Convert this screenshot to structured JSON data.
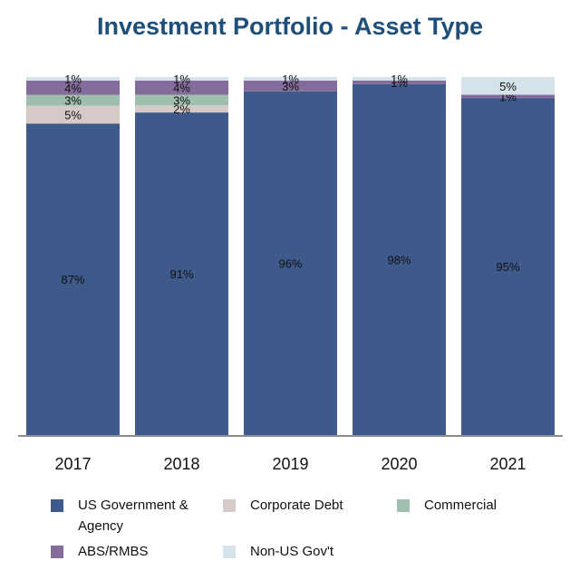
{
  "chart_data": {
    "type": "bar",
    "stacked": true,
    "normalized": true,
    "title": "Investment Portfolio - Asset Type",
    "xlabel": "",
    "ylabel": "",
    "ylim": [
      0,
      100
    ],
    "grid": false,
    "categories": [
      "2017",
      "2018",
      "2019",
      "2020",
      "2021"
    ],
    "series": [
      {
        "name": "US Government & Agency",
        "color": "#3d5a8a",
        "values": [
          87,
          91,
          96,
          98,
          95
        ],
        "labels": [
          "87%",
          "91%",
          "96%",
          "98%",
          "95%"
        ]
      },
      {
        "name": "Corporate Debt",
        "color": "#d6cac9",
        "values": [
          5,
          2,
          0,
          0,
          0
        ],
        "labels": [
          "5%",
          "2%",
          "",
          "",
          ""
        ]
      },
      {
        "name": "Commercial",
        "color": "#9fbfae",
        "values": [
          3,
          3,
          0,
          0,
          0
        ],
        "labels": [
          "3%",
          "3%",
          "",
          "",
          ""
        ]
      },
      {
        "name": "ABS/RMBS",
        "color": "#846d9c",
        "values": [
          4,
          4,
          3,
          1,
          1
        ],
        "labels": [
          "4%",
          "4%",
          "3%",
          "1%",
          "1%"
        ]
      },
      {
        "name": "Non-US Gov't",
        "color": "#d4e2e9",
        "values": [
          1,
          1,
          1,
          1,
          5
        ],
        "labels": [
          "1%",
          "1%",
          "1%",
          "1%",
          "5%"
        ]
      }
    ],
    "legend": {
      "position": "bottom",
      "items": [
        {
          "label_line1": "US Government &",
          "label_line2": "Agency",
          "color": "#3d5a8a"
        },
        {
          "label_line1": "Corporate Debt",
          "label_line2": "",
          "color": "#d6cac9"
        },
        {
          "label_line1": "Commercial",
          "label_line2": "",
          "color": "#9fbfae"
        },
        {
          "label_line1": "ABS/RMBS",
          "label_line2": "",
          "color": "#846d9c"
        },
        {
          "label_line1": "Non-US Gov't",
          "label_line2": "",
          "color": "#d4e2e9"
        }
      ]
    }
  }
}
